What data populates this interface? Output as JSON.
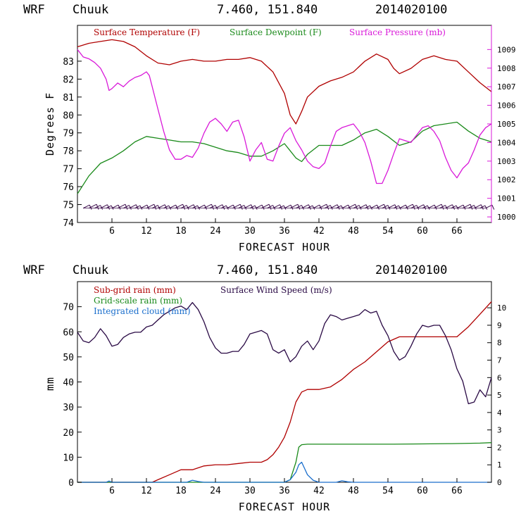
{
  "chart_data": [
    {
      "type": "line",
      "header": {
        "model": "WRF",
        "location": "Chuuk",
        "coords": "7.460, 151.840",
        "run": "2014020100"
      },
      "xlabel": "FORECAST HOUR",
      "ylabel": "Degrees F",
      "xlim": [
        0,
        72
      ],
      "ylim": [
        74,
        85
      ],
      "y2lim": [
        999.7,
        1010.3
      ],
      "x_ticks": [
        6,
        12,
        18,
        24,
        30,
        36,
        42,
        48,
        54,
        60,
        66
      ],
      "x_tick_labels": [
        "6",
        "12",
        "18",
        "24",
        "30",
        "36",
        "42",
        "48",
        "54",
        "60",
        "66"
      ],
      "y_ticks": [
        74,
        75,
        76,
        77,
        78,
        79,
        80,
        81,
        82,
        83
      ],
      "y_tick_labels": [
        "74",
        "75",
        "76",
        "77",
        "78",
        "79",
        "80",
        "81",
        "82",
        "83"
      ],
      "y2_ticks": [
        1000,
        1001,
        1002,
        1003,
        1004,
        1005,
        1006,
        1007,
        1008,
        1009
      ],
      "y2_tick_labels": [
        "1000",
        "1001",
        "1002",
        "1003",
        "1004",
        "1005",
        "1006",
        "1007",
        "1008",
        "1009"
      ],
      "series": [
        {
          "name": "Surface Temperature (F)",
          "color": "#b00000",
          "axis": "left",
          "x": [
            0,
            2,
            4,
            6,
            8,
            10,
            12,
            14,
            16,
            18,
            20,
            22,
            24,
            26,
            28,
            30,
            32,
            34,
            36,
            37,
            38,
            39,
            40,
            42,
            44,
            46,
            48,
            50,
            52,
            54,
            55,
            56,
            58,
            60,
            62,
            64,
            66,
            68,
            70,
            72
          ],
          "y": [
            83.8,
            84.0,
            84.1,
            84.2,
            84.1,
            83.8,
            83.3,
            82.9,
            82.8,
            83.0,
            83.1,
            83.0,
            83.0,
            83.1,
            83.1,
            83.2,
            83.0,
            82.4,
            81.2,
            80.0,
            79.5,
            80.2,
            81.0,
            81.6,
            81.9,
            82.1,
            82.4,
            83.0,
            83.4,
            83.1,
            82.6,
            82.3,
            82.6,
            83.1,
            83.3,
            83.1,
            83.0,
            82.4,
            81.8,
            81.3
          ]
        },
        {
          "name": "Surface Dewpoint (F)",
          "color": "#1a8a1a",
          "axis": "left",
          "x": [
            0,
            2,
            4,
            6,
            8,
            10,
            12,
            14,
            16,
            18,
            20,
            22,
            24,
            26,
            28,
            30,
            32,
            34,
            36,
            37,
            38,
            39,
            40,
            42,
            44,
            46,
            48,
            50,
            52,
            54,
            56,
            58,
            60,
            62,
            64,
            66,
            68,
            70,
            72
          ],
          "y": [
            75.6,
            76.6,
            77.3,
            77.6,
            78.0,
            78.5,
            78.8,
            78.7,
            78.6,
            78.5,
            78.5,
            78.4,
            78.2,
            78.0,
            77.9,
            77.7,
            77.7,
            78.0,
            78.4,
            78.0,
            77.6,
            77.4,
            77.8,
            78.3,
            78.3,
            78.3,
            78.6,
            79.0,
            79.2,
            78.8,
            78.3,
            78.5,
            79.1,
            79.4,
            79.5,
            79.6,
            79.1,
            78.7,
            78.5
          ]
        },
        {
          "name": "Surface Pressure (mb)",
          "color": "#d919d9",
          "axis": "right",
          "x": [
            0,
            1,
            2,
            3,
            4,
            5,
            5.5,
            6,
            7,
            8,
            9,
            10,
            11,
            12,
            12.5,
            13,
            14,
            15,
            16,
            17,
            18,
            19,
            20,
            21,
            22,
            23,
            24,
            25,
            26,
            27,
            28,
            29,
            30,
            31,
            32,
            33,
            34,
            35,
            36,
            37,
            38,
            39,
            40,
            41,
            42,
            43,
            44,
            45,
            46,
            47,
            48,
            49,
            50,
            51,
            52,
            53,
            54,
            55,
            56,
            57,
            58,
            59,
            60,
            61,
            62,
            63,
            64,
            65,
            66,
            67,
            68,
            69,
            70,
            71,
            72
          ],
          "y": [
            1009.0,
            1008.6,
            1008.5,
            1008.3,
            1008.0,
            1007.4,
            1006.8,
            1006.9,
            1007.2,
            1007.0,
            1007.3,
            1007.5,
            1007.6,
            1007.8,
            1007.6,
            1007.0,
            1005.8,
            1004.6,
            1003.6,
            1003.1,
            1003.1,
            1003.3,
            1003.2,
            1003.7,
            1004.5,
            1005.1,
            1005.3,
            1005.0,
            1004.6,
            1005.1,
            1005.2,
            1004.3,
            1003.0,
            1003.6,
            1004.0,
            1003.1,
            1003.0,
            1003.8,
            1004.5,
            1004.8,
            1004.1,
            1003.6,
            1003.0,
            1002.7,
            1002.6,
            1002.9,
            1003.8,
            1004.6,
            1004.8,
            1004.9,
            1005.0,
            1004.6,
            1004.0,
            1003.0,
            1001.8,
            1001.8,
            1002.5,
            1003.4,
            1004.2,
            1004.1,
            1004.0,
            1004.4,
            1004.8,
            1004.9,
            1004.6,
            1004.1,
            1003.2,
            1002.5,
            1002.1,
            1002.6,
            1002.9,
            1003.6,
            1004.4,
            1004.8,
            1005.0
          ]
        }
      ],
      "legend": [
        "Surface Temperature (F)",
        "Surface Dewpoint (F)",
        "Surface Pressure (mb)"
      ],
      "wind_barbs": {
        "y_level": 74.8,
        "interval_hours": 1,
        "color": "#3a0a4a"
      }
    },
    {
      "type": "line",
      "header": {
        "model": "WRF",
        "location": "Chuuk",
        "coords": "7.460, 151.840",
        "run": "2014020100"
      },
      "xlabel": "FORECAST HOUR",
      "ylabel": "mm",
      "xlim": [
        0,
        72
      ],
      "ylim": [
        0,
        80
      ],
      "y2lim": [
        0,
        11.5
      ],
      "x_ticks": [
        6,
        12,
        18,
        24,
        30,
        36,
        42,
        48,
        54,
        60,
        66
      ],
      "x_tick_labels": [
        "6",
        "12",
        "18",
        "24",
        "30",
        "36",
        "42",
        "48",
        "54",
        "60",
        "66"
      ],
      "y_ticks": [
        0,
        10,
        20,
        30,
        40,
        50,
        60,
        70
      ],
      "y_tick_labels": [
        "0",
        "10",
        "20",
        "30",
        "40",
        "50",
        "60",
        "70"
      ],
      "y2_ticks": [
        0,
        1,
        2,
        3,
        4,
        5,
        6,
        7,
        8,
        9,
        10
      ],
      "y2_tick_labels": [
        "0",
        "1",
        "2",
        "3",
        "4",
        "5",
        "6",
        "7",
        "8",
        "9",
        "10"
      ],
      "series": [
        {
          "name": "Sub-grid rain (mm)",
          "color": "#b00000",
          "axis": "left",
          "x": [
            0,
            13,
            14,
            16,
            18,
            20,
            22,
            24,
            26,
            28,
            30,
            32,
            33,
            34,
            35,
            36,
            37,
            38,
            39,
            40,
            42,
            44,
            46,
            48,
            50,
            52,
            54,
            56,
            58,
            60,
            62,
            64,
            66,
            68,
            70,
            72
          ],
          "y": [
            0,
            0,
            1,
            3,
            5,
            5,
            6.5,
            7,
            7,
            7.5,
            8,
            8,
            9,
            11,
            14,
            18,
            24,
            32,
            36,
            37,
            37,
            38,
            41,
            45,
            48,
            52,
            56,
            58,
            58,
            58,
            58,
            58,
            58,
            62,
            67,
            72
          ]
        },
        {
          "name": "Grid-scale rain (mm)",
          "color": "#1a8a1a",
          "axis": "left",
          "x": [
            0,
            36,
            37,
            38,
            38.5,
            39,
            40,
            45,
            50,
            55,
            60,
            65,
            70,
            72
          ],
          "y": [
            0,
            0,
            1,
            8,
            14,
            15,
            15.2,
            15.2,
            15.2,
            15.2,
            15.3,
            15.4,
            15.6,
            15.8
          ]
        },
        {
          "name": "Integrated cloud (mm)",
          "color": "#1a6ecc",
          "axis": "left",
          "x": [
            0,
            5,
            5.5,
            6,
            12,
            19,
            20,
            21,
            22,
            36,
            37,
            38,
            38.5,
            39,
            39.5,
            40,
            41,
            42,
            45,
            46,
            47,
            48,
            60,
            72
          ],
          "y": [
            0,
            0,
            0.5,
            0,
            0,
            0,
            0.8,
            0.3,
            0,
            0,
            1,
            4,
            7,
            8,
            5.5,
            3,
            0.8,
            0,
            0,
            0.6,
            0.2,
            0,
            0,
            0
          ]
        },
        {
          "name": "Surface Wind Speed (m/s)",
          "color": "#2a0a45",
          "axis": "right",
          "x": [
            0,
            1,
            2,
            3,
            4,
            5,
            6,
            7,
            8,
            9,
            10,
            11,
            12,
            13,
            14,
            15,
            16,
            17,
            18,
            19,
            20,
            21,
            22,
            23,
            24,
            25,
            26,
            27,
            28,
            29,
            30,
            31,
            32,
            33,
            34,
            35,
            36,
            37,
            38,
            39,
            40,
            41,
            42,
            43,
            44,
            45,
            46,
            47,
            48,
            49,
            50,
            51,
            52,
            53,
            54,
            55,
            56,
            57,
            58,
            59,
            60,
            61,
            62,
            63,
            64,
            65,
            66,
            67,
            68,
            69,
            70,
            71,
            72
          ],
          "y": [
            8.6,
            8.1,
            8.0,
            8.3,
            8.8,
            8.4,
            7.8,
            7.9,
            8.3,
            8.5,
            8.6,
            8.6,
            8.9,
            9.0,
            9.3,
            9.6,
            9.8,
            10.0,
            10.1,
            9.9,
            10.3,
            9.9,
            9.2,
            8.3,
            7.7,
            7.4,
            7.4,
            7.5,
            7.5,
            7.9,
            8.5,
            8.6,
            8.7,
            8.5,
            7.6,
            7.4,
            7.6,
            6.9,
            7.2,
            7.8,
            8.1,
            7.6,
            8.1,
            9.1,
            9.6,
            9.5,
            9.3,
            9.4,
            9.5,
            9.6,
            9.9,
            9.7,
            9.8,
            9.0,
            8.4,
            7.5,
            7.0,
            7.2,
            7.8,
            8.5,
            9.0,
            8.9,
            9.0,
            9.0,
            8.4,
            7.6,
            6.5,
            5.8,
            4.5,
            4.6,
            5.3,
            4.9,
            6.0
          ]
        }
      ],
      "legend": [
        "Sub-grid rain (mm)",
        "Grid-scale rain (mm)",
        "Integrated cloud (mm)",
        "Surface Wind Speed (m/s)"
      ]
    }
  ]
}
